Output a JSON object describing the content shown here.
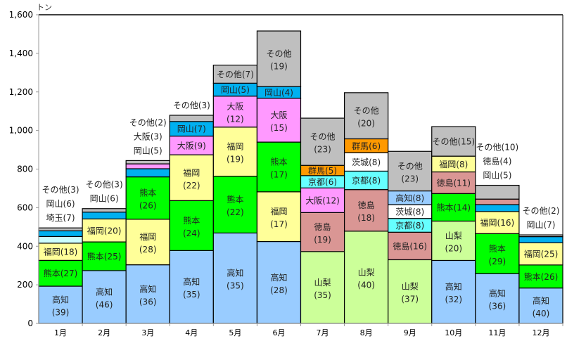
{
  "chart_data": {
    "type": "bar",
    "stacked": true,
    "title": "",
    "ylabel": "トン",
    "xlabel": "",
    "ylim": [
      0,
      1600
    ],
    "yticks": [
      0,
      200,
      400,
      600,
      800,
      1000,
      1200,
      1400,
      1600
    ],
    "ytick_labels": [
      "0",
      "200",
      "400",
      "600",
      "800",
      "1,000",
      "1,200",
      "1,400",
      "1,600"
    ],
    "grid": false,
    "categories": [
      "1月",
      "2月",
      "3月",
      "4月",
      "5月",
      "6月",
      "7月",
      "8月",
      "9月",
      "10月",
      "11月",
      "12月"
    ],
    "totals": [
      495,
      595,
      844,
      1079,
      1339,
      1516,
      1064,
      1196,
      892,
      1020,
      716,
      459
    ],
    "colors": {
      "高知": "#99CCFF",
      "山梨": "#CCFF99",
      "熊本": "#00FF00",
      "徳島": "#DA9694",
      "福岡": "#FFFF99",
      "京都": "#66FFFF",
      "埼玉": "#CCFFFF",
      "茨城": "#FFFFFF",
      "大阪": "#FF99FF",
      "群馬": "#FF9900",
      "岡山": "#00B0F0",
      "その他": "#BFBFBF"
    },
    "note": "segments listed bottom to top; pct = share (%) of monthly total shown in label",
    "stacks": [
      [
        {
          "name": "高知",
          "pct": 39
        },
        {
          "name": "熊本",
          "pct": 27
        },
        {
          "name": "福岡",
          "pct": 18
        },
        {
          "name": "埼玉",
          "pct": 7,
          "outside": true
        },
        {
          "name": "岡山",
          "pct": 6,
          "outside": true
        },
        {
          "name": "その他",
          "pct": 3,
          "outside": true
        }
      ],
      [
        {
          "name": "高知",
          "pct": 46
        },
        {
          "name": "熊本",
          "pct": 25
        },
        {
          "name": "福岡",
          "pct": 20
        },
        {
          "name": "岡山",
          "pct": 6,
          "outside": true
        },
        {
          "name": "その他",
          "pct": 3,
          "outside": true
        }
      ],
      [
        {
          "name": "高知",
          "pct": 36
        },
        {
          "name": "福岡",
          "pct": 28
        },
        {
          "name": "熊本",
          "pct": 26
        },
        {
          "name": "岡山",
          "pct": 5,
          "outside": true
        },
        {
          "name": "大阪",
          "pct": 3,
          "outside": true
        },
        {
          "name": "その他",
          "pct": 2,
          "outside": true
        }
      ],
      [
        {
          "name": "高知",
          "pct": 35
        },
        {
          "name": "熊本",
          "pct": 24
        },
        {
          "name": "福岡",
          "pct": 22
        },
        {
          "name": "大阪",
          "pct": 9
        },
        {
          "name": "岡山",
          "pct": 7
        },
        {
          "name": "その他",
          "pct": 3,
          "outside": true
        }
      ],
      [
        {
          "name": "高知",
          "pct": 35
        },
        {
          "name": "熊本",
          "pct": 22
        },
        {
          "name": "福岡",
          "pct": 19
        },
        {
          "name": "大阪",
          "pct": 12
        },
        {
          "name": "岡山",
          "pct": 5
        },
        {
          "name": "その他",
          "pct": 7
        }
      ],
      [
        {
          "name": "高知",
          "pct": 28
        },
        {
          "name": "福岡",
          "pct": 17
        },
        {
          "name": "熊本",
          "pct": 17
        },
        {
          "name": "大阪",
          "pct": 15
        },
        {
          "name": "岡山",
          "pct": 4
        },
        {
          "name": "その他",
          "pct": 19
        }
      ],
      [
        {
          "name": "山梨",
          "pct": 35
        },
        {
          "name": "徳島",
          "pct": 19
        },
        {
          "name": "大阪",
          "pct": 12
        },
        {
          "name": "京都",
          "pct": 6
        },
        {
          "name": "群馬",
          "pct": 5
        },
        {
          "name": "その他",
          "pct": 23
        }
      ],
      [
        {
          "name": "山梨",
          "pct": 40
        },
        {
          "name": "徳島",
          "pct": 18
        },
        {
          "name": "京都",
          "pct": 8
        },
        {
          "name": "茨城",
          "pct": 8
        },
        {
          "name": "群馬",
          "pct": 6
        },
        {
          "name": "その他",
          "pct": 20
        }
      ],
      [
        {
          "name": "山梨",
          "pct": 37
        },
        {
          "name": "徳島",
          "pct": 16
        },
        {
          "name": "京都",
          "pct": 8
        },
        {
          "name": "茨城",
          "pct": 8
        },
        {
          "name": "高知",
          "pct": 8
        },
        {
          "name": "その他",
          "pct": 23
        }
      ],
      [
        {
          "name": "高知",
          "pct": 32
        },
        {
          "name": "山梨",
          "pct": 20
        },
        {
          "name": "熊本",
          "pct": 14
        },
        {
          "name": "徳島",
          "pct": 11
        },
        {
          "name": "福岡",
          "pct": 8
        },
        {
          "name": "その他",
          "pct": 15
        }
      ],
      [
        {
          "name": "高知",
          "pct": 36
        },
        {
          "name": "熊本",
          "pct": 29
        },
        {
          "name": "福岡",
          "pct": 16
        },
        {
          "name": "岡山",
          "pct": 5,
          "outside": true
        },
        {
          "name": "徳島",
          "pct": 4,
          "outside": true
        },
        {
          "name": "その他",
          "pct": 10,
          "outside": true
        }
      ],
      [
        {
          "name": "高知",
          "pct": 40
        },
        {
          "name": "熊本",
          "pct": 26
        },
        {
          "name": "福岡",
          "pct": 25
        },
        {
          "name": "岡山",
          "pct": 7,
          "outside": true
        },
        {
          "name": "その他",
          "pct": 2,
          "outside": true
        }
      ]
    ]
  }
}
